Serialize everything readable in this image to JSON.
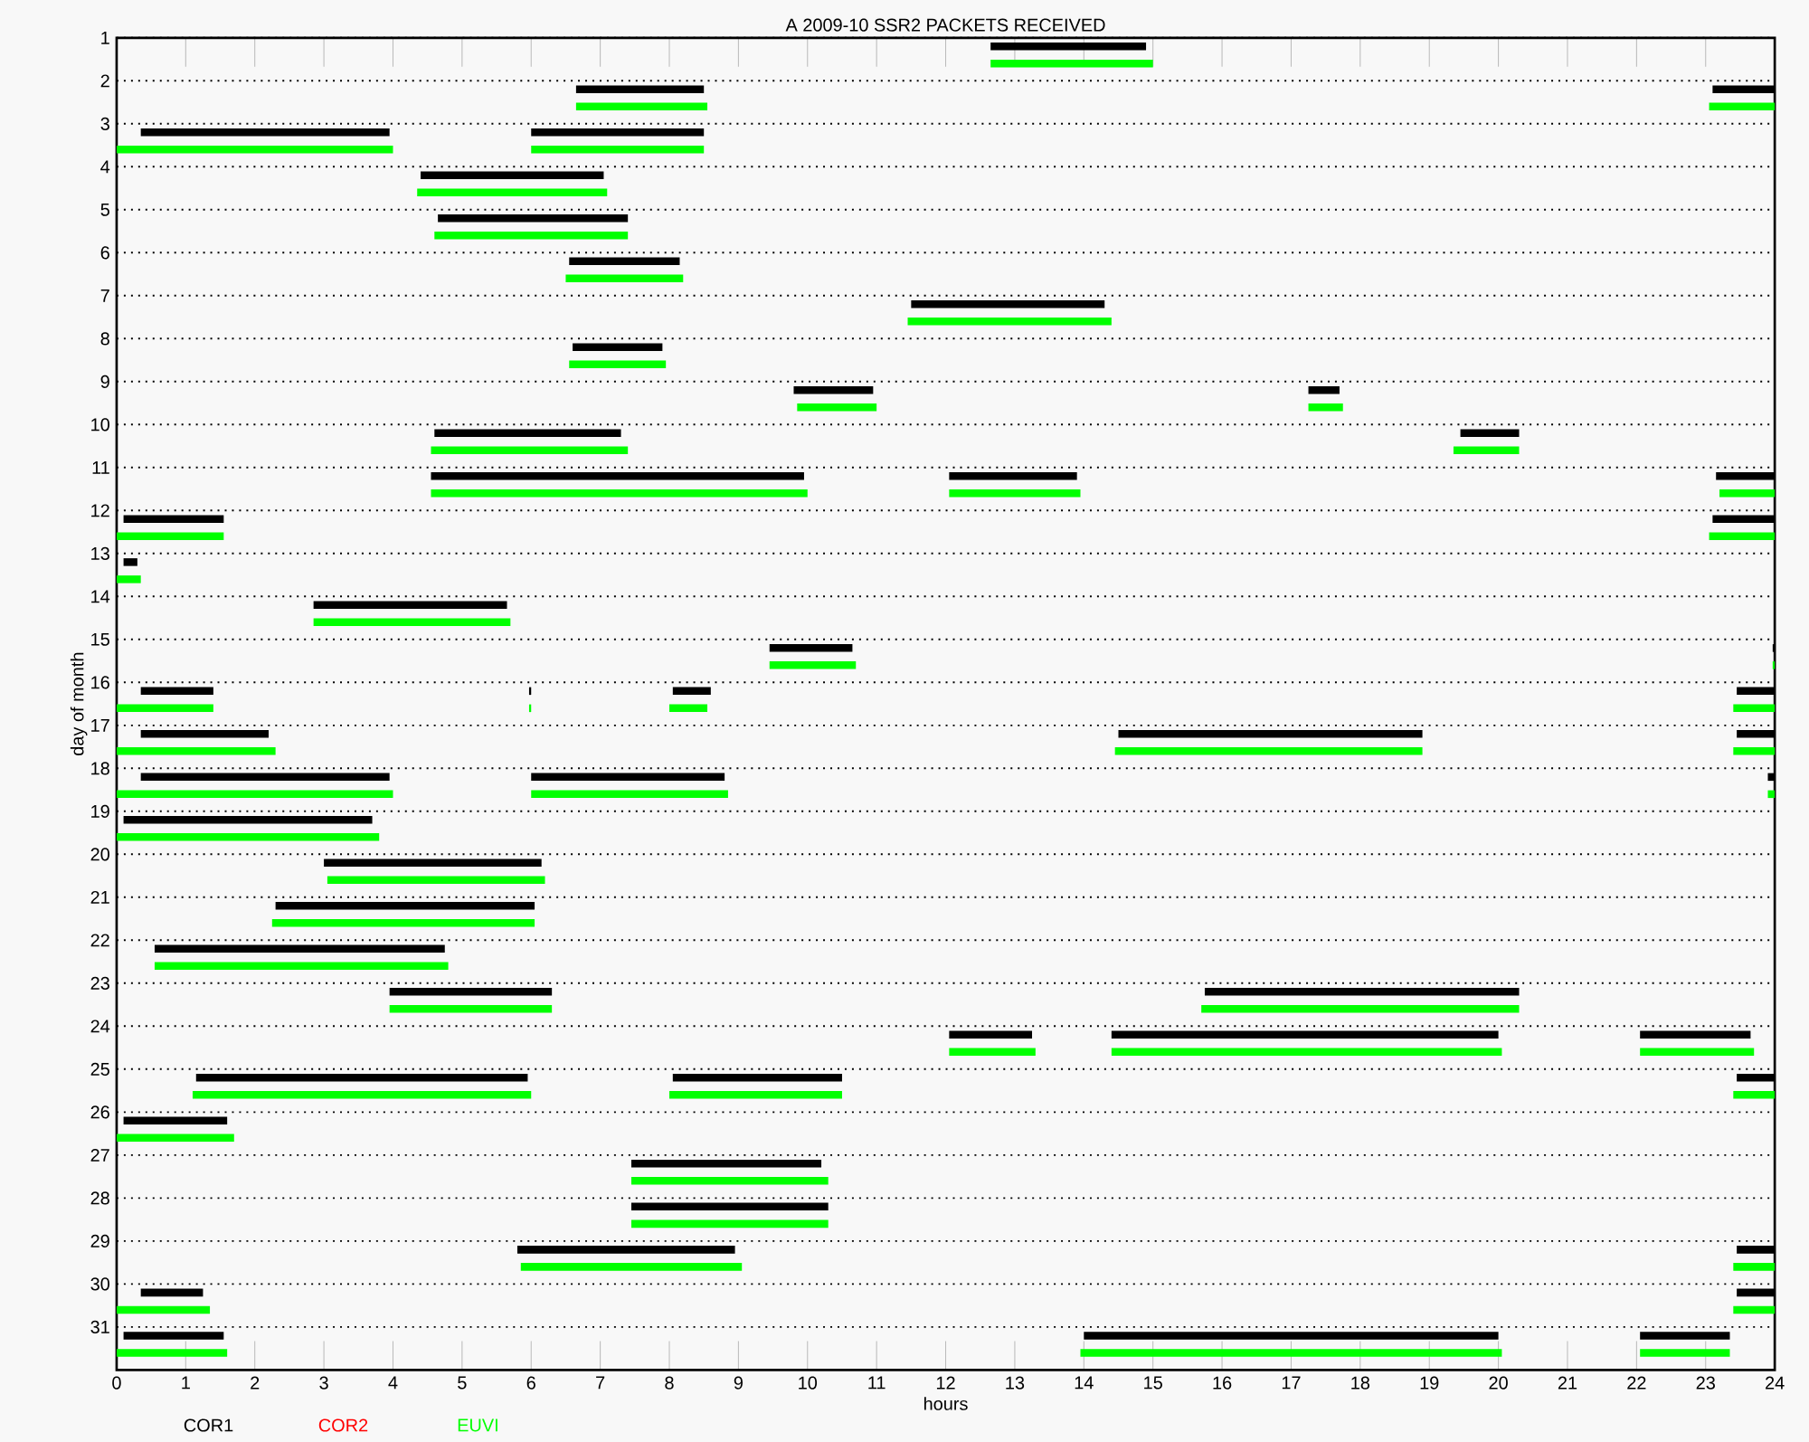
{
  "chart_data": {
    "type": "bar",
    "orientation": "horizontal",
    "title": "A  2009-10 SSR2 PACKETS RECEIVED",
    "xlabel": "hours",
    "ylabel": "day of month",
    "categories": [
      "1",
      "2",
      "3",
      "4",
      "5",
      "6",
      "7",
      "8",
      "9",
      "10",
      "11",
      "12",
      "13",
      "14",
      "15",
      "16",
      "17",
      "18",
      "19",
      "20",
      "21",
      "22",
      "23",
      "24",
      "25",
      "26",
      "27",
      "28",
      "29",
      "30",
      "31"
    ],
    "xlim": [
      0,
      24
    ],
    "xticks": [
      0,
      1,
      2,
      3,
      4,
      5,
      6,
      7,
      8,
      9,
      10,
      11,
      12,
      13,
      14,
      15,
      16,
      17,
      18,
      19,
      20,
      21,
      22,
      23,
      24
    ],
    "grid": "y",
    "legend": "bottom",
    "series": [
      {
        "name": "COR1",
        "color": "#000000",
        "base": [
          12.65,
          6.65,
          0.35,
          4.4,
          4.65,
          6.55,
          11.5,
          6.6,
          9.8,
          4.6,
          4.55,
          0.1,
          0.1,
          2.85,
          9.45,
          0.35,
          0.35,
          0.35,
          0.1,
          3.0,
          2.3,
          0.55,
          3.95,
          12.05,
          1.15,
          0.1,
          7.45,
          7.45,
          5.8,
          0.35,
          0.1
        ],
        "values": [
          2.25,
          1.85,
          3.6,
          2.65,
          2.75,
          1.6,
          2.8,
          1.3,
          1.15,
          2.7,
          5.4,
          1.45,
          0.2,
          2.8,
          1.2,
          1.05,
          1.85,
          3.6,
          3.6,
          3.15,
          3.75,
          4.2,
          2.35,
          1.2,
          4.8,
          1.5,
          2.75,
          2.85,
          3.15,
          0.9,
          1.45
        ]
      },
      {
        "color": "#000000",
        "base": [
          null,
          23.1,
          6.0,
          null,
          null,
          null,
          null,
          null,
          17.25,
          19.45,
          12.05,
          23.1,
          null,
          null,
          23.97,
          5.97,
          14.5,
          6.0,
          null,
          null,
          null,
          null,
          15.75,
          14.4,
          8.05,
          null,
          null,
          null,
          23.45,
          23.45,
          14.0
        ],
        "values": [
          null,
          0.9,
          2.5,
          null,
          null,
          null,
          null,
          null,
          0.45,
          0.85,
          1.85,
          0.9,
          null,
          null,
          0.03,
          0.03,
          4.4,
          2.8,
          null,
          null,
          null,
          null,
          4.55,
          5.6,
          2.45,
          null,
          null,
          null,
          0.55,
          0.55,
          6.0
        ]
      },
      {
        "color": "#000000",
        "base": [
          null,
          null,
          null,
          null,
          null,
          null,
          null,
          null,
          null,
          null,
          23.15,
          null,
          null,
          null,
          null,
          8.05,
          23.45,
          23.9,
          null,
          null,
          null,
          null,
          null,
          22.05,
          23.45,
          null,
          null,
          null,
          null,
          null,
          22.05
        ],
        "values": [
          null,
          null,
          null,
          null,
          null,
          null,
          null,
          null,
          null,
          null,
          0.85,
          null,
          null,
          null,
          null,
          0.55,
          0.55,
          0.1,
          null,
          null,
          null,
          null,
          null,
          1.6,
          0.55,
          null,
          null,
          null,
          null,
          null,
          1.3
        ]
      },
      {
        "color": "#000000",
        "base": [
          null,
          null,
          null,
          null,
          null,
          null,
          null,
          null,
          null,
          null,
          null,
          null,
          null,
          null,
          null,
          23.45,
          null,
          null,
          null,
          null,
          null,
          null,
          null,
          null,
          null,
          null,
          null,
          null,
          null,
          null,
          null
        ],
        "values": [
          null,
          null,
          null,
          null,
          null,
          null,
          null,
          null,
          null,
          null,
          null,
          null,
          null,
          null,
          null,
          0.55,
          null,
          null,
          null,
          null,
          null,
          null,
          null,
          null,
          null,
          null,
          null,
          null,
          null,
          null,
          null
        ]
      },
      {
        "name": "COR2",
        "color": "#ff0000",
        "values": [
          null,
          null,
          null,
          null,
          null,
          null,
          null,
          null,
          null,
          null,
          null,
          null,
          null,
          null,
          null,
          null,
          null,
          null,
          null,
          null,
          null,
          null,
          null,
          null,
          null,
          null,
          null,
          null,
          null,
          null,
          null
        ]
      },
      {
        "name": "EUVI",
        "color": "#00ff00",
        "base": [
          12.65,
          6.65,
          0,
          4.35,
          4.6,
          6.5,
          11.45,
          6.55,
          9.85,
          4.55,
          4.55,
          0,
          0,
          2.85,
          9.45,
          0,
          0,
          0,
          0,
          3.05,
          2.25,
          0.55,
          3.95,
          12.05,
          1.1,
          0,
          7.45,
          7.45,
          5.85,
          0,
          0
        ],
        "values": [
          2.35,
          1.9,
          4.0,
          2.75,
          2.8,
          1.7,
          2.95,
          1.4,
          1.15,
          2.85,
          5.45,
          1.55,
          0.35,
          2.85,
          1.25,
          1.4,
          2.3,
          4.0,
          3.8,
          3.15,
          3.8,
          4.25,
          2.35,
          1.25,
          4.9,
          1.7,
          2.85,
          2.85,
          3.2,
          1.35,
          1.6
        ]
      },
      {
        "color": "#00ff00",
        "base": [
          null,
          23.05,
          6.0,
          null,
          null,
          null,
          null,
          null,
          17.25,
          19.35,
          12.05,
          23.05,
          null,
          null,
          23.97,
          5.97,
          14.45,
          6.0,
          null,
          null,
          null,
          null,
          15.7,
          14.4,
          8.0,
          null,
          null,
          null,
          23.4,
          23.4,
          13.95
        ],
        "values": [
          null,
          0.95,
          2.5,
          null,
          null,
          null,
          null,
          null,
          0.5,
          0.95,
          1.9,
          0.95,
          null,
          null,
          0.03,
          0.03,
          4.45,
          2.85,
          null,
          null,
          null,
          null,
          4.6,
          5.65,
          2.5,
          null,
          null,
          null,
          0.6,
          0.6,
          6.1
        ]
      },
      {
        "color": "#00ff00",
        "base": [
          null,
          null,
          null,
          null,
          null,
          null,
          null,
          null,
          null,
          null,
          23.2,
          null,
          null,
          null,
          null,
          8.0,
          23.4,
          23.9,
          null,
          null,
          null,
          null,
          null,
          22.05,
          23.4,
          null,
          null,
          null,
          null,
          null,
          22.05
        ],
        "values": [
          null,
          null,
          null,
          null,
          null,
          null,
          null,
          null,
          null,
          null,
          0.8,
          null,
          null,
          null,
          null,
          0.55,
          0.6,
          0.1,
          null,
          null,
          null,
          null,
          null,
          1.65,
          0.6,
          null,
          null,
          null,
          null,
          null,
          1.3
        ]
      },
      {
        "color": "#00ff00",
        "base": [
          null,
          null,
          null,
          null,
          null,
          null,
          null,
          null,
          null,
          null,
          null,
          null,
          null,
          null,
          null,
          23.4,
          null,
          null,
          null,
          null,
          null,
          null,
          null,
          null,
          null,
          null,
          null,
          null,
          null,
          null,
          null
        ],
        "values": [
          null,
          null,
          null,
          null,
          null,
          null,
          null,
          null,
          null,
          null,
          null,
          null,
          null,
          null,
          null,
          0.6,
          null,
          null,
          null,
          null,
          null,
          null,
          null,
          null,
          null,
          null,
          null,
          null,
          null,
          null,
          null
        ]
      }
    ]
  }
}
